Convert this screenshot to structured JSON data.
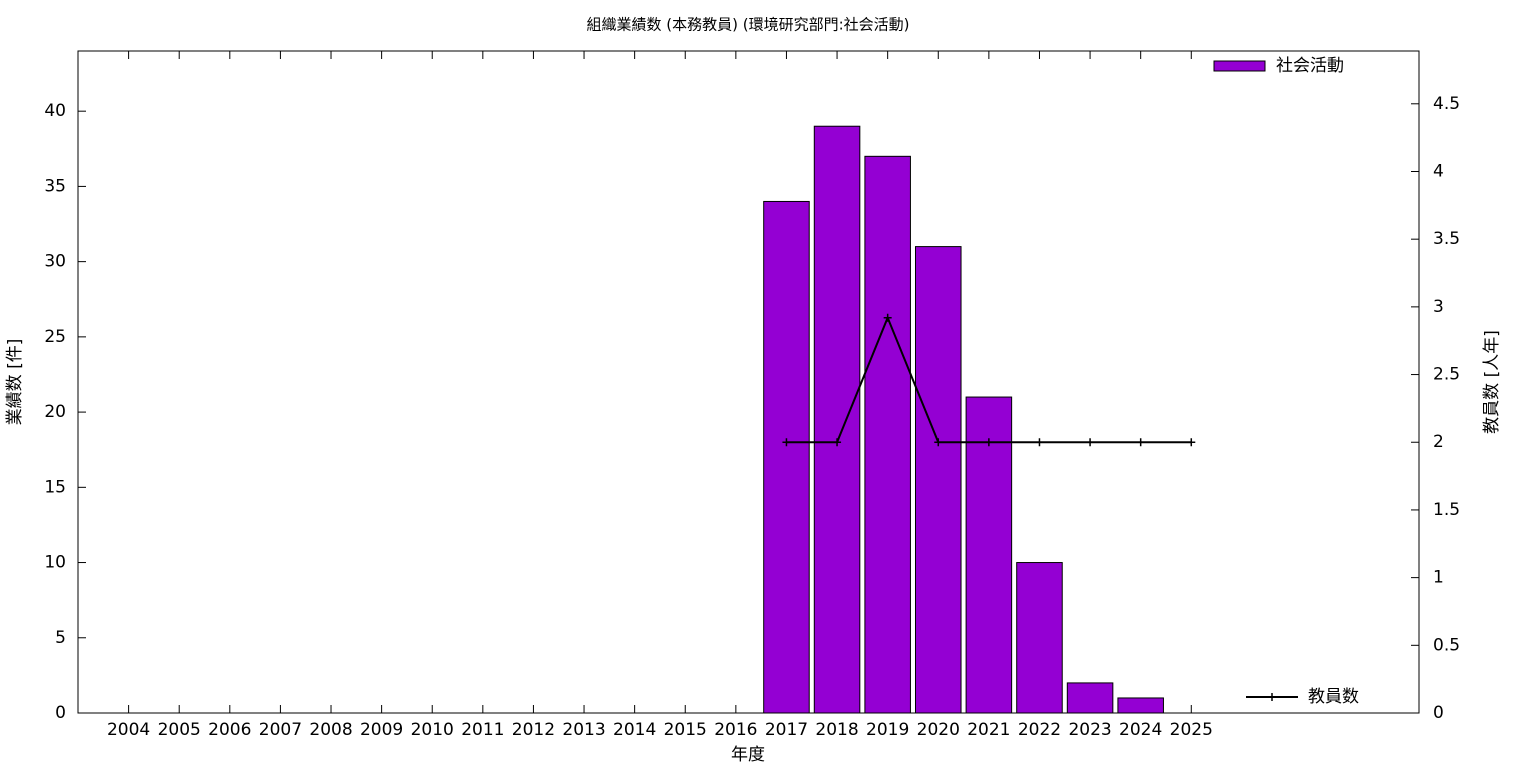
{
  "chart_data": {
    "type": "bar",
    "title": "組織業績数 (本務教員) (環境研究部門:社会活動)",
    "xlabel": "年度",
    "ylabel": "業績数 [件]",
    "y2label": "教員数 [人年]",
    "xlim": [
      2003,
      2029.5
    ],
    "xticks": [
      2004,
      2005,
      2006,
      2007,
      2008,
      2009,
      2010,
      2011,
      2012,
      2013,
      2014,
      2015,
      2016,
      2017,
      2018,
      2019,
      2020,
      2021,
      2022,
      2023,
      2024,
      2025
    ],
    "ylim": [
      0,
      44
    ],
    "yticks": [
      0,
      5,
      10,
      15,
      20,
      25,
      30,
      35,
      40
    ],
    "y2lim": [
      0,
      4.89
    ],
    "y2ticks": [
      0,
      0.5,
      1,
      1.5,
      2,
      2.5,
      3,
      3.5,
      4,
      4.5
    ],
    "series": [
      {
        "name": "社会活動",
        "type": "bar",
        "color": "#9400d3",
        "x": [
          2017,
          2018,
          2019,
          2020,
          2021,
          2022,
          2023,
          2024
        ],
        "values": [
          34,
          39,
          37,
          31,
          21,
          10,
          2,
          1
        ]
      },
      {
        "name": "教員数",
        "type": "line",
        "axis": "y2",
        "color": "#000000",
        "x": [
          2017,
          2018,
          2019,
          2020,
          2021,
          2022,
          2023,
          2024,
          2025
        ],
        "values": [
          2,
          2,
          2.92,
          2,
          2,
          2,
          2,
          2,
          2
        ]
      }
    ]
  }
}
